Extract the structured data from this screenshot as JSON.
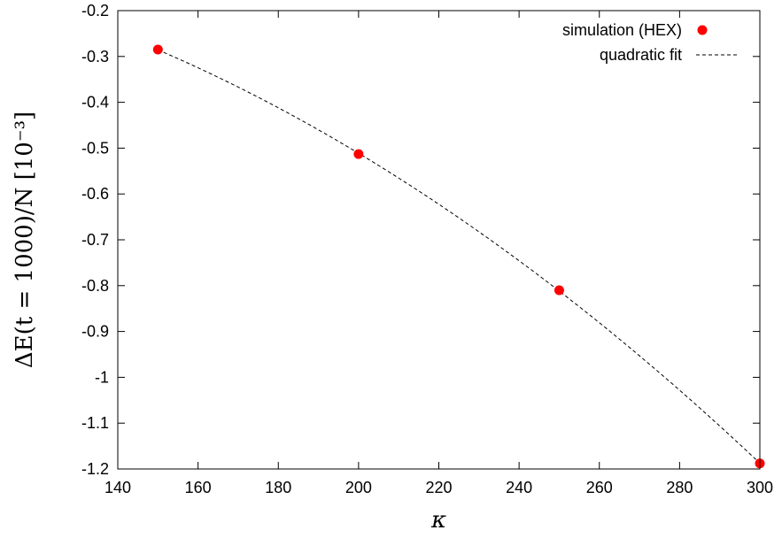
{
  "chart_data": {
    "type": "scatter",
    "title": "",
    "xlabel": "κ",
    "ylabel": "ΔE(t = 1000)/N  [10⁻³]",
    "xlim": [
      140,
      300
    ],
    "ylim": [
      -1.2,
      -0.2
    ],
    "xticks": [
      140,
      160,
      180,
      200,
      220,
      240,
      260,
      280,
      300
    ],
    "yticks": [
      -1.2,
      -1.1,
      -1,
      -0.9,
      -0.8,
      -0.7,
      -0.6,
      -0.5,
      -0.4,
      -0.3,
      -0.2
    ],
    "xtick_labels": [
      "140",
      "160",
      "180",
      "200",
      "220",
      "240",
      "260",
      "280",
      "300"
    ],
    "ytick_labels": [
      "-1.2",
      "-1.1",
      "-1",
      "-0.9",
      "-0.8",
      "-0.7",
      "-0.6",
      "-0.5",
      "-0.4",
      "-0.3",
      "-0.2"
    ],
    "legend_position": "top-right",
    "series": [
      {
        "name": "simulation (HEX)",
        "kind": "points",
        "color": "#ff0000",
        "x": [
          150,
          200,
          250,
          300
        ],
        "y": [
          -0.285,
          -0.513,
          -0.81,
          -1.188
        ]
      },
      {
        "name": "quadratic fit",
        "kind": "dashed-line",
        "color": "#000000",
        "x": [
          150,
          200,
          250,
          300
        ],
        "y": [
          -0.285,
          -0.513,
          -0.81,
          -1.188
        ]
      }
    ]
  }
}
